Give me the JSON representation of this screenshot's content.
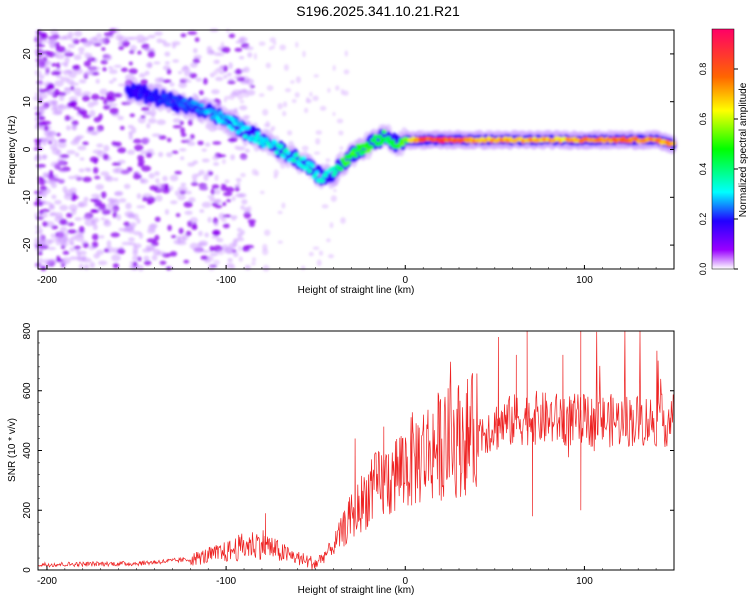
{
  "title": "S196.2025.341.10.21.R21",
  "chart_data": [
    {
      "type": "heatmap",
      "name": "spectrogram",
      "xlabel": "Height of straight line (km)",
      "ylabel": "Frequency (Hz)",
      "xlim": [
        -205,
        150
      ],
      "ylim": [
        -25,
        25
      ],
      "xticks": [
        -200,
        -100,
        0,
        100
      ],
      "yticks": [
        -20,
        -10,
        0,
        10,
        20
      ],
      "colorbar": {
        "label": "Normalized spectral amplitude",
        "range": [
          0.0,
          0.96
        ],
        "ticks": [
          0.0,
          0.2,
          0.4,
          0.6,
          0.8
        ]
      },
      "ridge": {
        "x": [
          -150,
          -140,
          -130,
          -120,
          -110,
          -100,
          -90,
          -80,
          -70,
          -60,
          -55,
          -50,
          -45,
          -40,
          -35,
          -30,
          -25,
          -20,
          -15,
          -10,
          -5,
          0,
          10,
          20,
          40,
          60,
          80,
          100,
          120,
          140,
          150
        ],
        "y": [
          12,
          11,
          10,
          9,
          8,
          6,
          4,
          2,
          0,
          -2,
          -3,
          -5,
          -6,
          -5,
          -3,
          -1,
          0,
          1,
          2,
          3,
          1,
          2,
          2,
          2,
          2,
          2,
          2,
          2,
          2,
          2,
          1
        ],
        "amplitude": [
          0.2,
          0.22,
          0.24,
          0.26,
          0.3,
          0.32,
          0.33,
          0.34,
          0.35,
          0.36,
          0.36,
          0.35,
          0.34,
          0.4,
          0.5,
          0.55,
          0.5,
          0.55,
          0.5,
          0.45,
          0.5,
          0.55,
          0.9,
          0.92,
          0.75,
          0.8,
          0.75,
          0.78,
          0.82,
          0.8,
          0.8
        ]
      }
    },
    {
      "type": "line",
      "name": "snr",
      "xlabel": "Height of straight line (km)",
      "ylabel": "SNR (10 * v/v)",
      "xlim": [
        -205,
        150
      ],
      "ylim": [
        0,
        800
      ],
      "xticks": [
        -200,
        -100,
        0,
        100
      ],
      "yticks": [
        0,
        200,
        400,
        600,
        800
      ],
      "color": "#ee2222",
      "trend": {
        "x": [
          -205,
          -150,
          -120,
          -100,
          -90,
          -80,
          -70,
          -60,
          -50,
          -40,
          -30,
          -20,
          -10,
          0,
          10,
          20,
          30,
          40,
          50,
          60,
          70,
          80,
          100,
          150
        ],
        "y": [
          18,
          22,
          35,
          60,
          80,
          90,
          60,
          40,
          20,
          80,
          180,
          260,
          300,
          350,
          390,
          420,
          440,
          460,
          480,
          500,
          510,
          505,
          500,
          500
        ]
      },
      "peaks": [
        {
          "x": 52,
          "y": 780
        },
        {
          "x": 62,
          "y": 720
        },
        {
          "x": 68,
          "y": 800
        },
        {
          "x": 71,
          "y": 180
        },
        {
          "x": 88,
          "y": 720
        },
        {
          "x": 98,
          "y": 800
        },
        {
          "x": 98,
          "y": 200
        },
        {
          "x": -78,
          "y": 190
        },
        {
          "x": -28,
          "y": 440
        },
        {
          "x": -12,
          "y": 480
        }
      ]
    }
  ]
}
